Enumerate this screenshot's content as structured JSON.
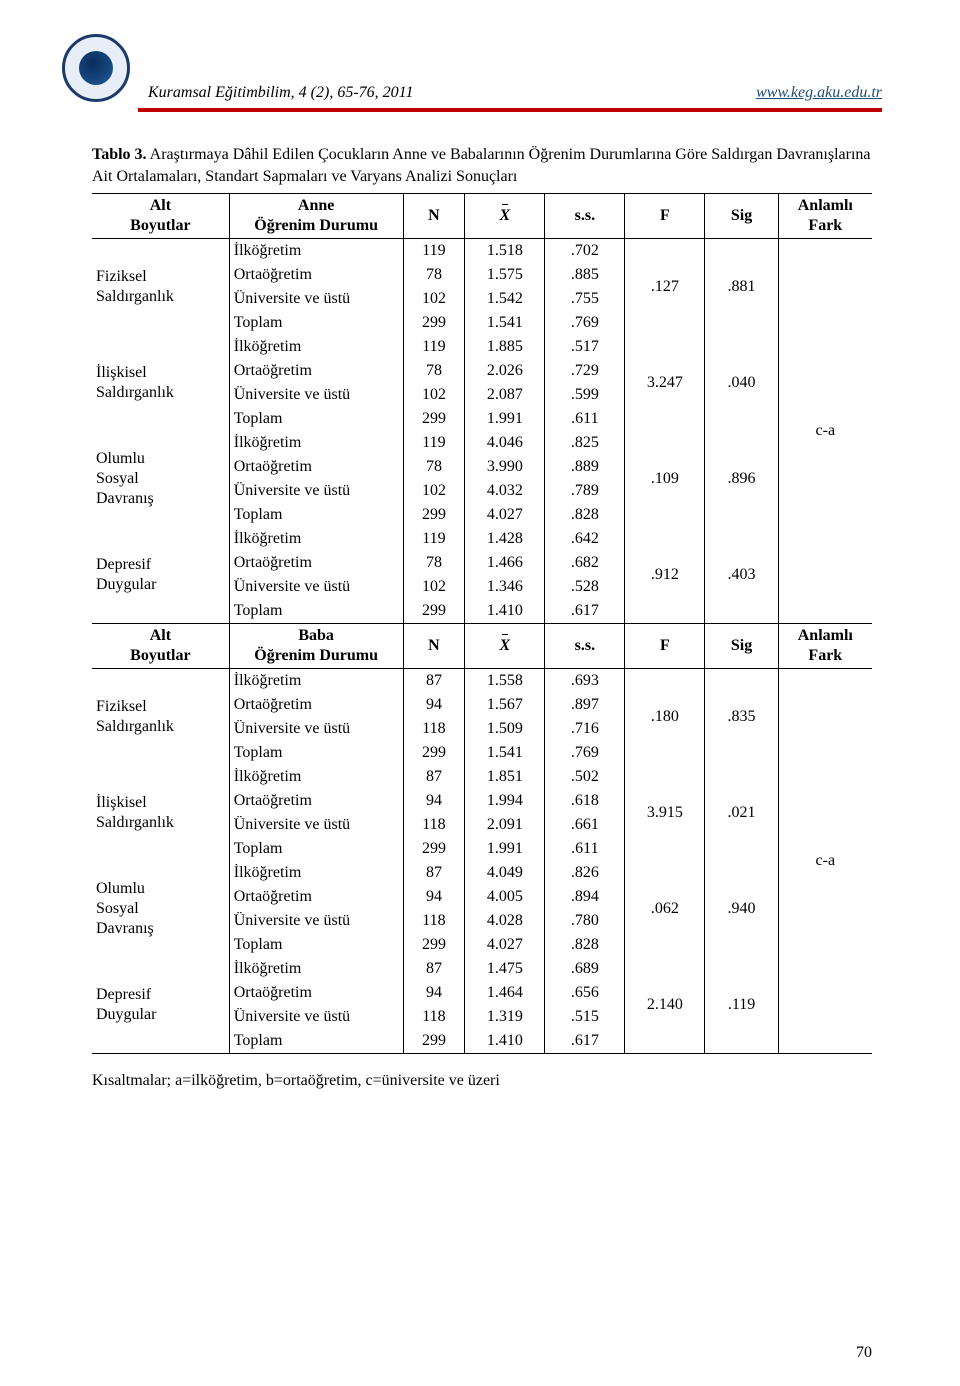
{
  "header": {
    "citation": "Kuramsal Eğitimbilim, 4 (2), 65-76, 2011",
    "link": "www.keg.aku.edu.tr"
  },
  "caption": {
    "label": "Tablo 3.",
    "text": "Araştırmaya Dâhil Edilen Çocukların Anne ve Babalarının Öğrenim Durumlarına Göre Saldırgan Davranışlarına Ait Ortalamaları, Standart Sapmaları ve Varyans Analizi Sonuçları"
  },
  "headers": {
    "sub": "Alt Boyutlar",
    "parentAnne": "Anne Öğrenim Durumu",
    "parentBaba": "Baba Öğrenim Durumu",
    "n": "N",
    "x": "X",
    "ss": "s.s.",
    "f": "F",
    "sig": "Sig",
    "fark": "Anlamlı Fark"
  },
  "levels": {
    "ilk": "İlköğretim",
    "orta": "Ortaöğretim",
    "uni": "Üniversite ve üstü",
    "top": "Toplam"
  },
  "subscales": {
    "fiz": "Fiziksel Saldırganlık",
    "ilis": "İlişkisel Saldırganlık",
    "olumlu": "Olumlu Sosyal Davranış",
    "dep": "Depresif Duygular"
  },
  "anne": {
    "fiz": {
      "rows": [
        [
          119,
          "1.518",
          ".702"
        ],
        [
          78,
          "1.575",
          ".885"
        ],
        [
          102,
          "1.542",
          ".755"
        ],
        [
          299,
          "1.541",
          ".769"
        ]
      ],
      "F": ".127",
      "Sig": ".881"
    },
    "ilis": {
      "rows": [
        [
          119,
          "1.885",
          ".517"
        ],
        [
          78,
          "2.026",
          ".729"
        ],
        [
          102,
          "2.087",
          ".599"
        ],
        [
          299,
          "1.991",
          ".611"
        ]
      ],
      "F": "3.247",
      "Sig": ".040",
      "fark": "c-a"
    },
    "olumlu": {
      "rows": [
        [
          119,
          "4.046",
          ".825"
        ],
        [
          78,
          "3.990",
          ".889"
        ],
        [
          102,
          "4.032",
          ".789"
        ],
        [
          299,
          "4.027",
          ".828"
        ]
      ],
      "F": ".109",
      "Sig": ".896"
    },
    "dep": {
      "rows": [
        [
          119,
          "1.428",
          ".642"
        ],
        [
          78,
          "1.466",
          ".682"
        ],
        [
          102,
          "1.346",
          ".528"
        ],
        [
          299,
          "1.410",
          ".617"
        ]
      ],
      "F": ".912",
      "Sig": ".403"
    }
  },
  "baba": {
    "fiz": {
      "rows": [
        [
          87,
          "1.558",
          ".693"
        ],
        [
          94,
          "1.567",
          ".897"
        ],
        [
          118,
          "1.509",
          ".716"
        ],
        [
          299,
          "1.541",
          ".769"
        ]
      ],
      "F": ".180",
      "Sig": ".835"
    },
    "ilis": {
      "rows": [
        [
          87,
          "1.851",
          ".502"
        ],
        [
          94,
          "1.994",
          ".618"
        ],
        [
          118,
          "2.091",
          ".661"
        ],
        [
          299,
          "1.991",
          ".611"
        ]
      ],
      "F": "3.915",
      "Sig": ".021",
      "fark": "c-a"
    },
    "olumlu": {
      "rows": [
        [
          87,
          "4.049",
          ".826"
        ],
        [
          94,
          "4.005",
          ".894"
        ],
        [
          118,
          "4.028",
          ".780"
        ],
        [
          299,
          "4.027",
          ".828"
        ]
      ],
      "F": ".062",
      "Sig": ".940"
    },
    "dep": {
      "rows": [
        [
          87,
          "1.475",
          ".689"
        ],
        [
          94,
          "1.464",
          ".656"
        ],
        [
          118,
          "1.319",
          ".515"
        ],
        [
          299,
          "1.410",
          ".617"
        ]
      ],
      "F": "2.140",
      "Sig": ".119"
    }
  },
  "footnote": "Kısaltmalar; a=ilköğretim, b=ortaöğretim, c=üniversite ve üzeri",
  "pageNumber": "70"
}
